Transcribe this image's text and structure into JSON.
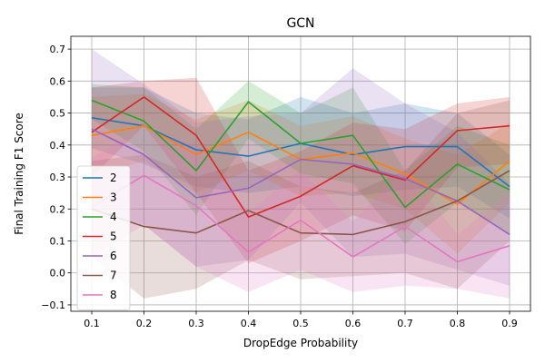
{
  "chart_data": {
    "type": "line",
    "title": "GCN",
    "xlabel": "DropEdge Probability",
    "ylabel": "Final Training F1 Score",
    "x": [
      0.1,
      0.2,
      0.3,
      0.4,
      0.5,
      0.6,
      0.7,
      0.8,
      0.9
    ],
    "x_ticks": [
      "0.1",
      "0.2",
      "0.3",
      "0.4",
      "0.5",
      "0.6",
      "0.7",
      "0.8",
      "0.9"
    ],
    "xlim": [
      0.06,
      0.94
    ],
    "ylim": [
      -0.12,
      0.74
    ],
    "y_ticks": [
      "−0.1",
      "0.0",
      "0.1",
      "0.2",
      "0.3",
      "0.4",
      "0.5",
      "0.6",
      "0.7"
    ],
    "y_tick_values": [
      -0.1,
      0.0,
      0.1,
      0.2,
      0.3,
      0.4,
      0.5,
      0.6,
      0.7
    ],
    "grid": true,
    "legend_position": "lower-left",
    "band_opacity": 0.2,
    "series": [
      {
        "name": "2",
        "color": "#1f77b4",
        "values": [
          0.485,
          0.46,
          0.385,
          0.365,
          0.405,
          0.37,
          0.395,
          0.395,
          0.27
        ],
        "band_low": [
          0.39,
          0.34,
          0.27,
          0.25,
          0.27,
          0.24,
          0.26,
          0.27,
          0.17
        ],
        "band_high": [
          0.58,
          0.58,
          0.5,
          0.48,
          0.55,
          0.5,
          0.53,
          0.5,
          0.37
        ]
      },
      {
        "name": "3",
        "color": "#ff7f0e",
        "values": [
          0.43,
          0.46,
          0.37,
          0.44,
          0.355,
          0.375,
          0.31,
          0.215,
          0.35
        ],
        "band_low": [
          0.3,
          0.35,
          0.25,
          0.32,
          0.24,
          0.25,
          0.2,
          0.06,
          0.22
        ],
        "band_high": [
          0.55,
          0.56,
          0.48,
          0.54,
          0.46,
          0.49,
          0.42,
          0.37,
          0.47
        ]
      },
      {
        "name": "4",
        "color": "#2ca02c",
        "values": [
          0.54,
          0.475,
          0.32,
          0.535,
          0.405,
          0.43,
          0.205,
          0.34,
          0.26
        ],
        "band_low": [
          0.48,
          0.38,
          0.18,
          0.42,
          0.31,
          0.28,
          0.09,
          0.22,
          0.12
        ],
        "band_high": [
          0.59,
          0.58,
          0.45,
          0.6,
          0.5,
          0.58,
          0.32,
          0.46,
          0.4
        ]
      },
      {
        "name": "5",
        "color": "#d62728",
        "values": [
          0.44,
          0.55,
          0.43,
          0.175,
          0.24,
          0.335,
          0.29,
          0.445,
          0.46
        ],
        "band_low": [
          0.3,
          0.46,
          0.25,
          0.03,
          0.1,
          0.18,
          0.13,
          0.33,
          0.34
        ],
        "band_high": [
          0.58,
          0.6,
          0.61,
          0.32,
          0.38,
          0.47,
          0.45,
          0.53,
          0.55
        ]
      },
      {
        "name": "6",
        "color": "#9467bd",
        "values": [
          0.45,
          0.37,
          0.235,
          0.265,
          0.355,
          0.34,
          0.295,
          0.225,
          0.12
        ],
        "band_low": [
          0.2,
          0.15,
          0.02,
          0.04,
          0.22,
          0.05,
          0.06,
          0.01,
          -0.04
        ],
        "band_high": [
          0.7,
          0.59,
          0.47,
          0.49,
          0.5,
          0.64,
          0.53,
          0.44,
          0.28
        ]
      },
      {
        "name": "7",
        "color": "#8c564b",
        "values": [
          0.2,
          0.145,
          0.125,
          0.195,
          0.125,
          0.12,
          0.16,
          0.225,
          0.32
        ],
        "band_low": [
          0.05,
          -0.08,
          -0.05,
          0.04,
          -0.02,
          -0.01,
          0.0,
          -0.05,
          0.1
        ],
        "band_high": [
          0.35,
          0.37,
          0.3,
          0.35,
          0.27,
          0.25,
          0.32,
          0.5,
          0.54
        ]
      },
      {
        "name": "8",
        "color": "#e377c2",
        "values": [
          0.205,
          0.305,
          0.21,
          0.065,
          0.165,
          0.05,
          0.145,
          0.035,
          0.085
        ],
        "band_low": [
          0.05,
          0.15,
          0.02,
          -0.06,
          0.01,
          -0.06,
          -0.04,
          -0.05,
          -0.08
        ],
        "band_high": [
          0.36,
          0.46,
          0.4,
          0.19,
          0.32,
          0.16,
          0.33,
          0.12,
          0.25
        ]
      }
    ]
  }
}
